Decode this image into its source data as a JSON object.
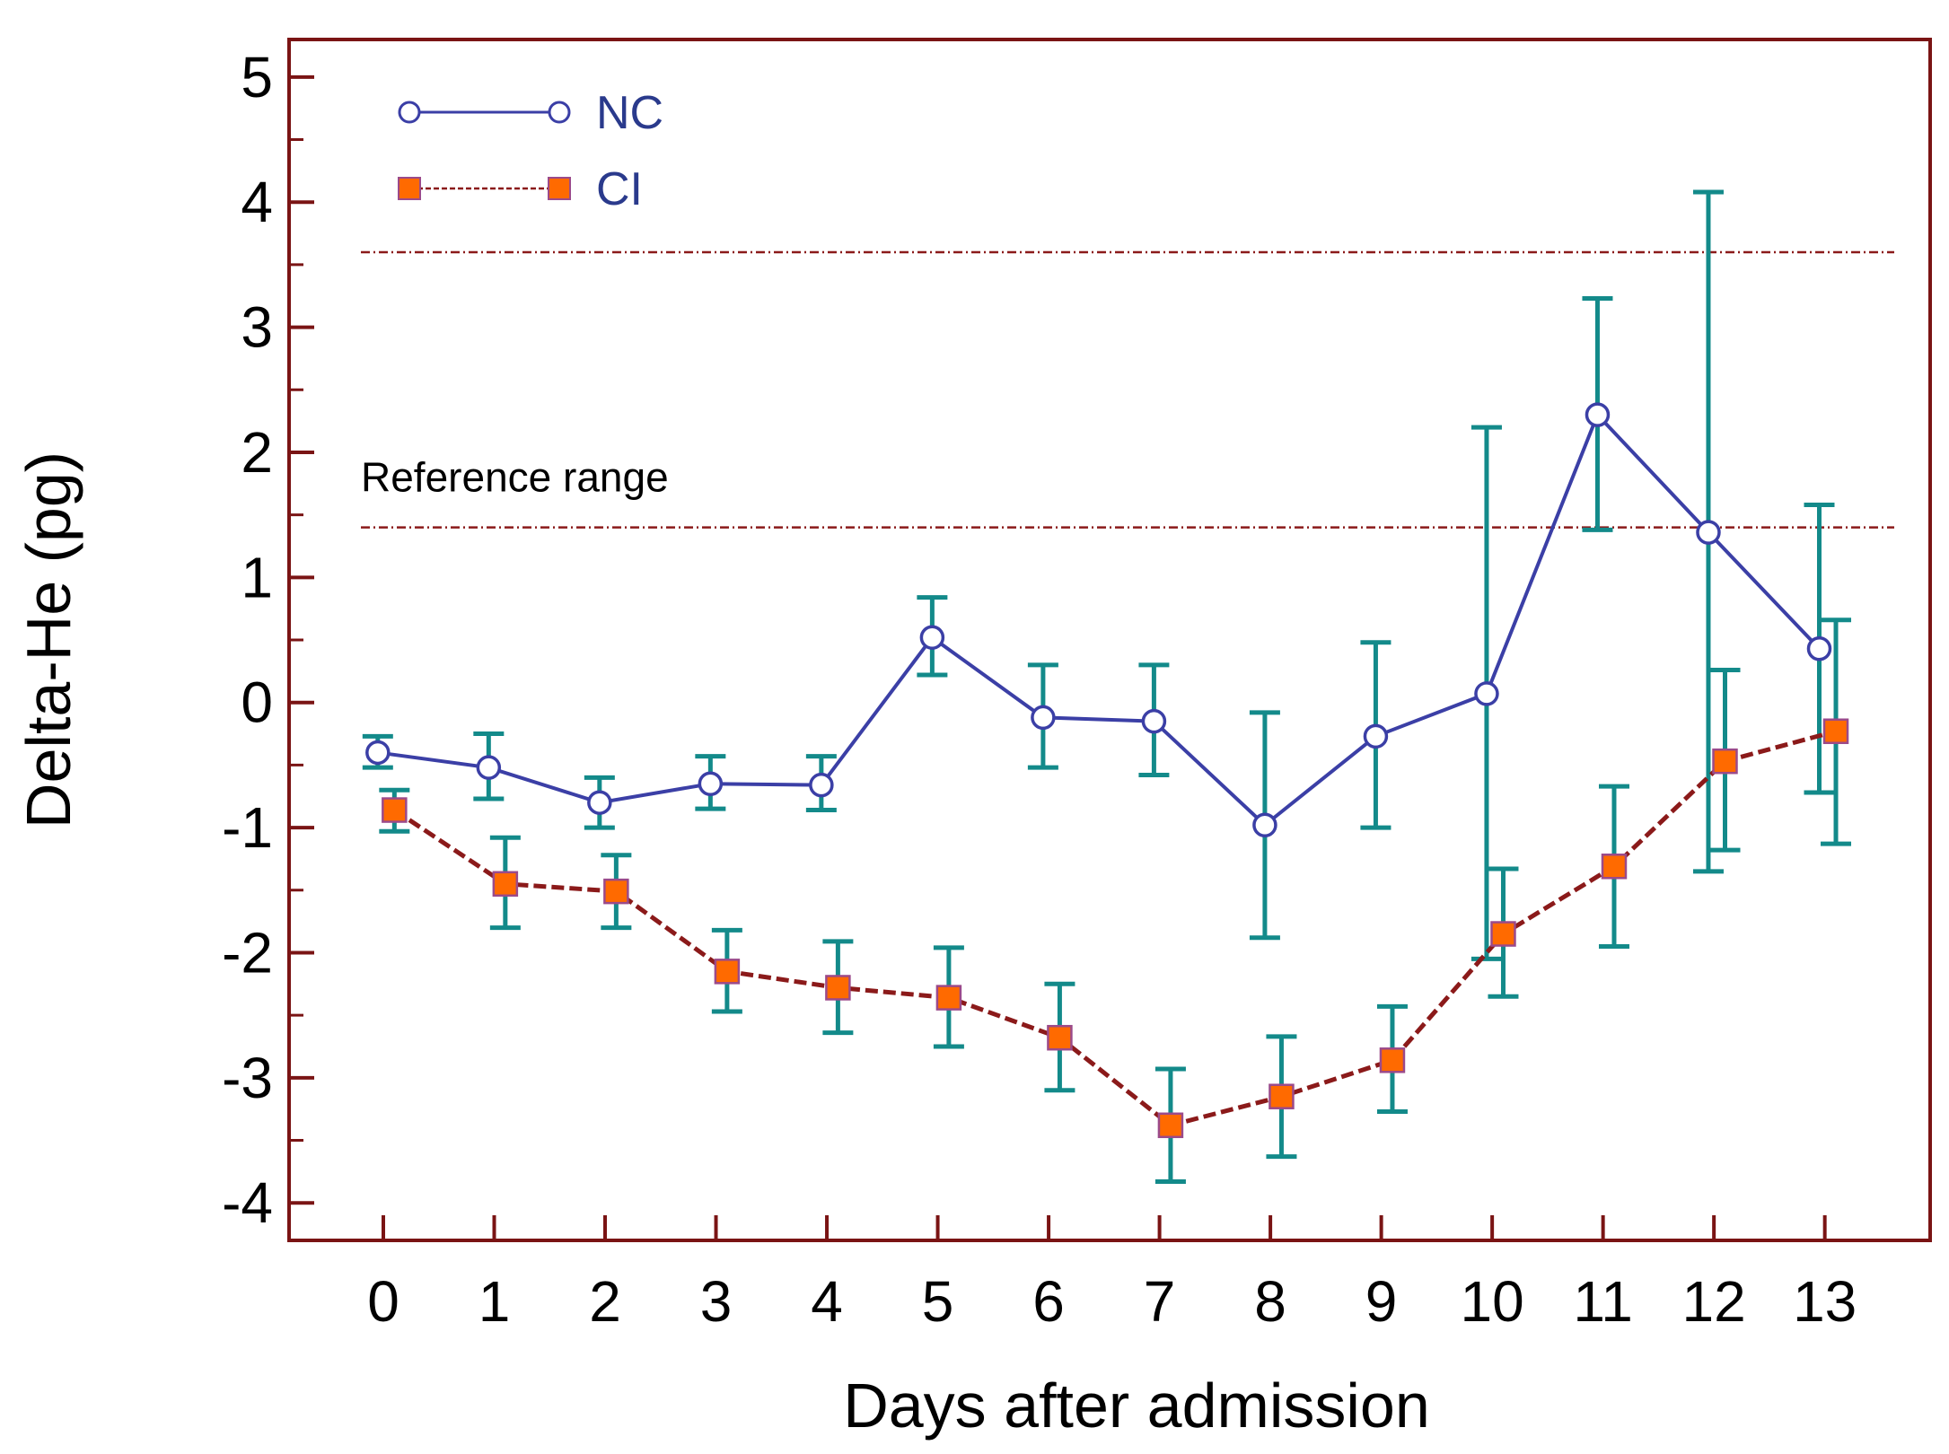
{
  "chart_data": {
    "type": "line",
    "xlabel": "Days after admission",
    "ylabel": "Delta-He (pg)",
    "x": [
      0,
      1,
      2,
      3,
      4,
      5,
      6,
      7,
      8,
      9,
      10,
      11,
      12,
      13
    ],
    "xlim": [
      -0.85,
      13.95
    ],
    "ylim": [
      -4.3,
      5.3
    ],
    "xticks": [
      0,
      1,
      2,
      3,
      4,
      5,
      6,
      7,
      8,
      9,
      10,
      11,
      12,
      13
    ],
    "yticks": [
      -4,
      -3,
      -2,
      -1,
      0,
      1,
      2,
      3,
      4,
      5
    ],
    "grid": false,
    "legend_position": "top-left",
    "reference_range": {
      "label": "Reference range",
      "lower": 1.4,
      "upper": 3.6,
      "color": "#8b1a1a"
    },
    "series": [
      {
        "name": "NC",
        "style": "solid line, open circle markers",
        "color": "#3b3fa6",
        "x_offset": -0.05,
        "values": [
          -0.4,
          -0.52,
          -0.8,
          -0.65,
          -0.66,
          0.52,
          -0.12,
          -0.15,
          -0.98,
          -0.27,
          0.07,
          2.3,
          1.36,
          0.43
        ],
        "err_low": [
          -0.52,
          -0.77,
          -1.0,
          -0.85,
          -0.86,
          0.22,
          -0.52,
          -0.58,
          -1.88,
          -1.0,
          -2.05,
          1.38,
          -1.35,
          -0.72
        ],
        "err_high": [
          -0.27,
          -0.25,
          -0.6,
          -0.43,
          -0.43,
          0.84,
          0.3,
          0.3,
          -0.08,
          0.48,
          2.2,
          3.23,
          4.08,
          1.58
        ]
      },
      {
        "name": "CI",
        "style": "dashed line, filled square markers",
        "color": "#8b1a1a",
        "marker_color": "#ff6a00",
        "x_offset": 0.1,
        "values": [
          -0.86,
          -1.45,
          -1.51,
          -2.15,
          -2.28,
          -2.36,
          -2.68,
          -3.38,
          -3.15,
          -2.86,
          -1.85,
          -1.31,
          -0.47,
          -0.23
        ],
        "err_low": [
          -1.03,
          -1.8,
          -1.8,
          -2.47,
          -2.64,
          -2.75,
          -3.1,
          -3.83,
          -3.63,
          -3.27,
          -2.35,
          -1.95,
          -1.18,
          -1.13
        ],
        "err_high": [
          -0.7,
          -1.08,
          -1.22,
          -1.82,
          -1.91,
          -1.96,
          -2.25,
          -2.93,
          -2.67,
          -2.43,
          -1.33,
          -0.67,
          0.26,
          0.66
        ]
      }
    ],
    "error_bar_color": "#138a8a",
    "axis_frame_color": "#7a1414"
  }
}
